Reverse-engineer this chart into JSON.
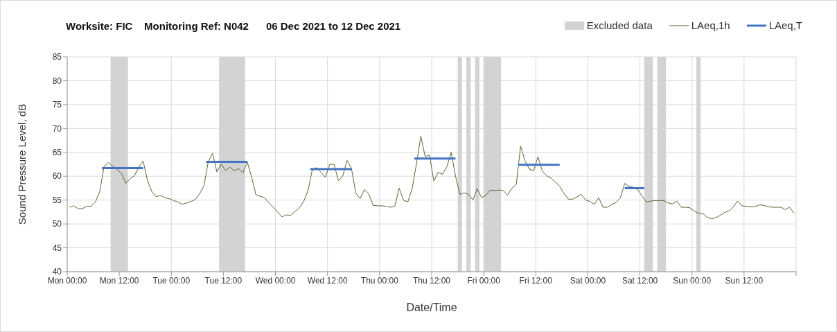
{
  "chart_data": {
    "type": "line",
    "title": "Worksite: FIC    Monitoring Ref: N042      06 Dec 2021 to 12 Dec 2021",
    "xlabel": "Date/Time",
    "ylabel": "Sound Pressure Level, dB",
    "xlim": [
      "2021-12-06T00:00",
      "2021-12-13T00:00"
    ],
    "ylim": [
      40,
      85
    ],
    "xticks": [
      {
        "value": "2021-12-06T00:00",
        "label": "Mon 00:00"
      },
      {
        "value": "2021-12-06T12:00",
        "label": "Mon 12:00"
      },
      {
        "value": "2021-12-07T00:00",
        "label": "Tue 00:00"
      },
      {
        "value": "2021-12-07T12:00",
        "label": "Tue 12:00"
      },
      {
        "value": "2021-12-08T00:00",
        "label": "Wed 00:00"
      },
      {
        "value": "2021-12-08T12:00",
        "label": "Wed 12:00"
      },
      {
        "value": "2021-12-09T00:00",
        "label": "Thu 00:00"
      },
      {
        "value": "2021-12-09T12:00",
        "label": "Thu 12:00"
      },
      {
        "value": "2021-12-10T00:00",
        "label": "Fri 00:00"
      },
      {
        "value": "2021-12-10T12:00",
        "label": "Fri 12:00"
      },
      {
        "value": "2021-12-11T00:00",
        "label": "Sat 00:00"
      },
      {
        "value": "2021-12-11T12:00",
        "label": "Sat 12:00"
      },
      {
        "value": "2021-12-12T00:00",
        "label": "Sun 00:00"
      },
      {
        "value": "2021-12-12T12:00",
        "label": "Sun 12:00"
      },
      {
        "value": "2021-12-13T00:00",
        "label": null
      }
    ],
    "yticks": [
      40,
      45,
      50,
      55,
      60,
      65,
      70,
      75,
      80,
      85
    ],
    "grid": true,
    "legend": "top right",
    "marker": "none",
    "bands": [
      {
        "axis": "x",
        "from": "2021-12-06T10:00",
        "to": "2021-12-06T14:00",
        "label": "Excluded data",
        "color": "#d3d3d3"
      },
      {
        "axis": "x",
        "from": "2021-12-07T11:00",
        "to": "2021-12-07T17:00",
        "color": "#d3d3d3"
      },
      {
        "axis": "x",
        "from": "2021-12-09T18:00",
        "to": "2021-12-09T19:00",
        "color": "#d3d3d3"
      },
      {
        "axis": "x",
        "from": "2021-12-09T20:00",
        "to": "2021-12-09T21:00",
        "color": "#d3d3d3"
      },
      {
        "axis": "x",
        "from": "2021-12-09T22:00",
        "to": "2021-12-09T23:00",
        "color": "#d3d3d3"
      },
      {
        "axis": "x",
        "from": "2021-12-10T00:00",
        "to": "2021-12-10T04:00",
        "color": "#d3d3d3"
      },
      {
        "axis": "x",
        "from": "2021-12-11T13:00",
        "to": "2021-12-11T15:00",
        "color": "#d3d3d3"
      },
      {
        "axis": "x",
        "from": "2021-12-11T16:00",
        "to": "2021-12-11T18:00",
        "color": "#d3d3d3"
      },
      {
        "axis": "x",
        "from": "2021-12-12T01:00",
        "to": "2021-12-12T02:00",
        "color": "#d3d3d3"
      }
    ],
    "series": [
      {
        "name": "LAeq,1h",
        "color": "#4e6b2f",
        "x": [
          "2021-12-06T00:30",
          "2021-12-06T01:30",
          "2021-12-06T02:30",
          "2021-12-06T03:30",
          "2021-12-06T04:30",
          "2021-12-06T05:30",
          "2021-12-06T06:30",
          "2021-12-06T07:30",
          "2021-12-06T08:30",
          "2021-12-06T09:30",
          "2021-12-06T10:30",
          "2021-12-06T11:30",
          "2021-12-06T12:30",
          "2021-12-06T13:30",
          "2021-12-06T14:30",
          "2021-12-06T15:30",
          "2021-12-06T16:30",
          "2021-12-06T17:30",
          "2021-12-06T18:30",
          "2021-12-06T19:30",
          "2021-12-06T20:30",
          "2021-12-06T21:30",
          "2021-12-06T22:30",
          "2021-12-06T23:30",
          "2021-12-07T00:30",
          "2021-12-07T01:30",
          "2021-12-07T02:30",
          "2021-12-07T03:30",
          "2021-12-07T04:30",
          "2021-12-07T05:30",
          "2021-12-07T06:30",
          "2021-12-07T07:30",
          "2021-12-07T08:30",
          "2021-12-07T09:30",
          "2021-12-07T10:30",
          "2021-12-07T11:30",
          "2021-12-07T12:30",
          "2021-12-07T13:30",
          "2021-12-07T14:30",
          "2021-12-07T15:30",
          "2021-12-07T16:30",
          "2021-12-07T17:30",
          "2021-12-07T18:30",
          "2021-12-07T19:30",
          "2021-12-07T20:30",
          "2021-12-07T21:30",
          "2021-12-07T22:30",
          "2021-12-07T23:30",
          "2021-12-08T00:30",
          "2021-12-08T01:30",
          "2021-12-08T02:30",
          "2021-12-08T03:30",
          "2021-12-08T04:30",
          "2021-12-08T05:30",
          "2021-12-08T06:30",
          "2021-12-08T07:30",
          "2021-12-08T08:30",
          "2021-12-08T09:30",
          "2021-12-08T10:30",
          "2021-12-08T11:30",
          "2021-12-08T12:30",
          "2021-12-08T13:30",
          "2021-12-08T14:30",
          "2021-12-08T15:30",
          "2021-12-08T16:30",
          "2021-12-08T17:30",
          "2021-12-08T18:30",
          "2021-12-08T19:30",
          "2021-12-08T20:30",
          "2021-12-08T21:30",
          "2021-12-08T22:30",
          "2021-12-08T23:30",
          "2021-12-09T00:30",
          "2021-12-09T01:30",
          "2021-12-09T02:30",
          "2021-12-09T03:30",
          "2021-12-09T04:30",
          "2021-12-09T05:30",
          "2021-12-09T06:30",
          "2021-12-09T07:30",
          "2021-12-09T08:30",
          "2021-12-09T09:30",
          "2021-12-09T10:30",
          "2021-12-09T11:30",
          "2021-12-09T12:30",
          "2021-12-09T13:30",
          "2021-12-09T14:30",
          "2021-12-09T15:30",
          "2021-12-09T16:30",
          "2021-12-09T17:30",
          "2021-12-09T18:30",
          "2021-12-09T19:30",
          "2021-12-09T20:30",
          "2021-12-09T21:30",
          "2021-12-09T22:30",
          "2021-12-09T23:30",
          "2021-12-10T00:30",
          "2021-12-10T01:30",
          "2021-12-10T02:30",
          "2021-12-10T03:30",
          "2021-12-10T04:30",
          "2021-12-10T05:30",
          "2021-12-10T06:30",
          "2021-12-10T07:30",
          "2021-12-10T08:30",
          "2021-12-10T09:30",
          "2021-12-10T10:30",
          "2021-12-10T11:30",
          "2021-12-10T12:30",
          "2021-12-10T13:30",
          "2021-12-10T14:30",
          "2021-12-10T15:30",
          "2021-12-10T16:30",
          "2021-12-10T17:30",
          "2021-12-10T18:30",
          "2021-12-10T19:30",
          "2021-12-10T20:30",
          "2021-12-10T21:30",
          "2021-12-10T22:30",
          "2021-12-10T23:30",
          "2021-12-11T00:30",
          "2021-12-11T01:30",
          "2021-12-11T02:30",
          "2021-12-11T03:30",
          "2021-12-11T04:30",
          "2021-12-11T05:30",
          "2021-12-11T06:30",
          "2021-12-11T07:30",
          "2021-12-11T08:30",
          "2021-12-11T09:30",
          "2021-12-11T10:30",
          "2021-12-11T11:30",
          "2021-12-11T12:30",
          "2021-12-11T13:30",
          "2021-12-11T14:30",
          "2021-12-11T15:30",
          "2021-12-11T16:30",
          "2021-12-11T17:30",
          "2021-12-11T18:30",
          "2021-12-11T19:30",
          "2021-12-11T20:30",
          "2021-12-11T21:30",
          "2021-12-11T22:30",
          "2021-12-11T23:30",
          "2021-12-12T00:30",
          "2021-12-12T01:30",
          "2021-12-12T02:30",
          "2021-12-12T03:30",
          "2021-12-12T04:30",
          "2021-12-12T05:30",
          "2021-12-12T06:30",
          "2021-12-12T07:30",
          "2021-12-12T08:30",
          "2021-12-12T09:30",
          "2021-12-12T10:30",
          "2021-12-12T11:30",
          "2021-12-12T12:30",
          "2021-12-12T13:30",
          "2021-12-12T14:30",
          "2021-12-12T15:30",
          "2021-12-12T16:30",
          "2021-12-12T17:30",
          "2021-12-12T18:30",
          "2021-12-12T19:30",
          "2021-12-12T20:30",
          "2021-12-12T21:30",
          "2021-12-12T22:30",
          "2021-12-12T23:30"
        ],
        "values": [
          53.5,
          53.8,
          53.2,
          53.2,
          53.7,
          53.7,
          54.6,
          56.8,
          62.0,
          62.9,
          62.1,
          61.4,
          60.6,
          58.5,
          59.5,
          60.1,
          61.9,
          63.2,
          59.1,
          56.8,
          55.7,
          56.0,
          55.5,
          55.3,
          54.9,
          54.6,
          54.1,
          54.4,
          54.7,
          55.1,
          56.3,
          57.9,
          63.0,
          64.8,
          60.9,
          62.5,
          61.2,
          61.9,
          61.1,
          61.6,
          60.7,
          63.0,
          59.8,
          56.1,
          55.8,
          55.5,
          54.4,
          53.5,
          52.5,
          51.5,
          51.9,
          51.8,
          52.6,
          53.4,
          54.7,
          57.0,
          61.4,
          61.8,
          60.8,
          59.8,
          62.5,
          62.5,
          59.1,
          60.0,
          63.3,
          61.7,
          56.5,
          55.3,
          57.2,
          56.3,
          53.9,
          53.8,
          53.8,
          53.7,
          53.5,
          53.7,
          57.5,
          55.0,
          54.6,
          57.4,
          62.6,
          68.4,
          64.1,
          64.4,
          59.0,
          60.8,
          60.4,
          62.0,
          65.0,
          60.0,
          56.2,
          56.5,
          56.2,
          55.0,
          57.4,
          55.5,
          56.0,
          57.1,
          57.0,
          57.1,
          57.0,
          56.0,
          57.5,
          58.3,
          66.3,
          63.3,
          61.5,
          61.1,
          64.1,
          61.1,
          60.1,
          59.6,
          58.8,
          57.9,
          56.4,
          55.2,
          55.2,
          55.7,
          56.2,
          55.0,
          54.7,
          54.1,
          55.5,
          53.5,
          53.5,
          54.1,
          54.5,
          55.5,
          58.5,
          57.8,
          57.7,
          57.2,
          55.8,
          54.6,
          54.8,
          54.9,
          54.9,
          54.9,
          54.4,
          54.2,
          54.8,
          53.5,
          53.5,
          53.4,
          52.7,
          52.2,
          52.2,
          51.4,
          51.1,
          51.3,
          51.8,
          52.4,
          52.7,
          53.5,
          54.8,
          53.8,
          53.7,
          53.6,
          53.6,
          54.0,
          53.9,
          53.6,
          53.5,
          53.5,
          53.5,
          53.0,
          53.5,
          52.3
        ]
      },
      {
        "name": "LAeq,T",
        "color": "#4472c4",
        "x": [
          "2021-12-06T08:00",
          "2021-12-06T17:30",
          "2021-12-06T20:00",
          "2021-12-07T08:00",
          "2021-12-07T17:30",
          "2021-12-08T02:00",
          "2021-12-08T08:00",
          "2021-12-08T17:30",
          "2021-12-08T22:00",
          "2021-12-09T08:00",
          "2021-12-09T17:30",
          "2021-12-09T23:00",
          "2021-12-10T08:00",
          "2021-12-10T17:30",
          "2021-12-11T00:00",
          "2021-12-11T08:30",
          "2021-12-11T13:00"
        ],
        "values": [
          61.7,
          61.7,
          null,
          63.0,
          63.0,
          null,
          61.5,
          61.5,
          null,
          63.7,
          63.7,
          null,
          62.4,
          62.4,
          null,
          57.5,
          57.5
        ]
      }
    ]
  }
}
